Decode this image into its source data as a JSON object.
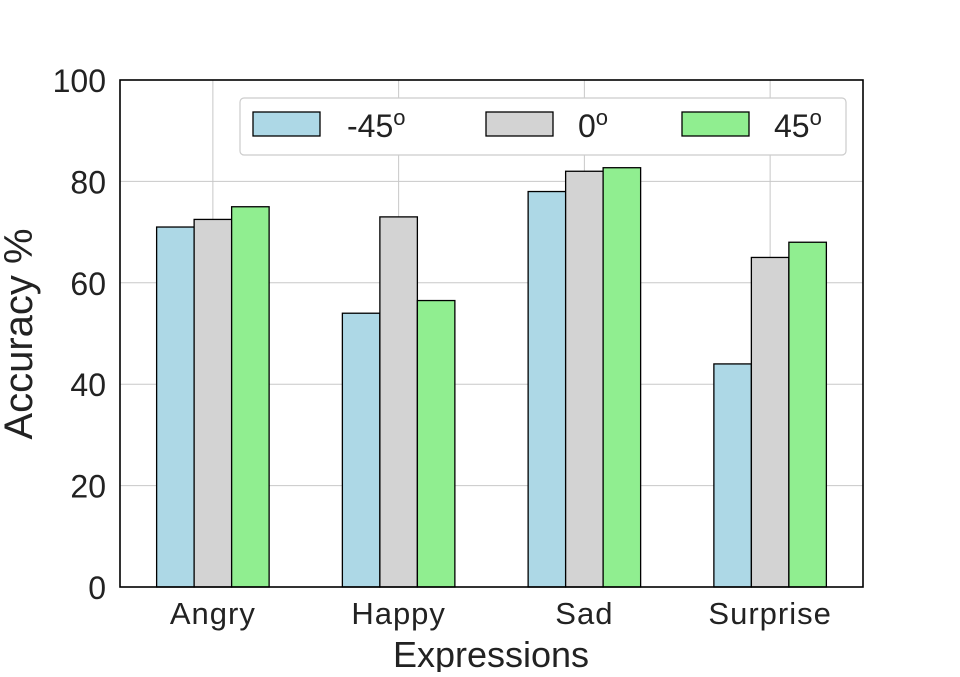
{
  "chart_data": {
    "type": "bar",
    "title": "",
    "xlabel": "Expressions",
    "ylabel": "Accuracy %",
    "categories": [
      "Angry",
      "Happy",
      "Sad",
      "Surprise"
    ],
    "ylim": [
      0,
      100
    ],
    "yticks": [
      "0",
      "20",
      "40",
      "60",
      "80",
      "100"
    ],
    "grid": true,
    "legend": "top-right",
    "series": [
      {
        "name": "-45",
        "suffix": "o",
        "color": "#add8e6",
        "values": [
          71,
          54,
          78,
          44
        ]
      },
      {
        "name": "0",
        "suffix": "o",
        "color": "#d3d3d3",
        "values": [
          72.5,
          73,
          82,
          65
        ]
      },
      {
        "name": "45",
        "suffix": "o",
        "color": "#90ee90",
        "values": [
          75,
          56.5,
          82.7,
          68
        ]
      }
    ]
  }
}
